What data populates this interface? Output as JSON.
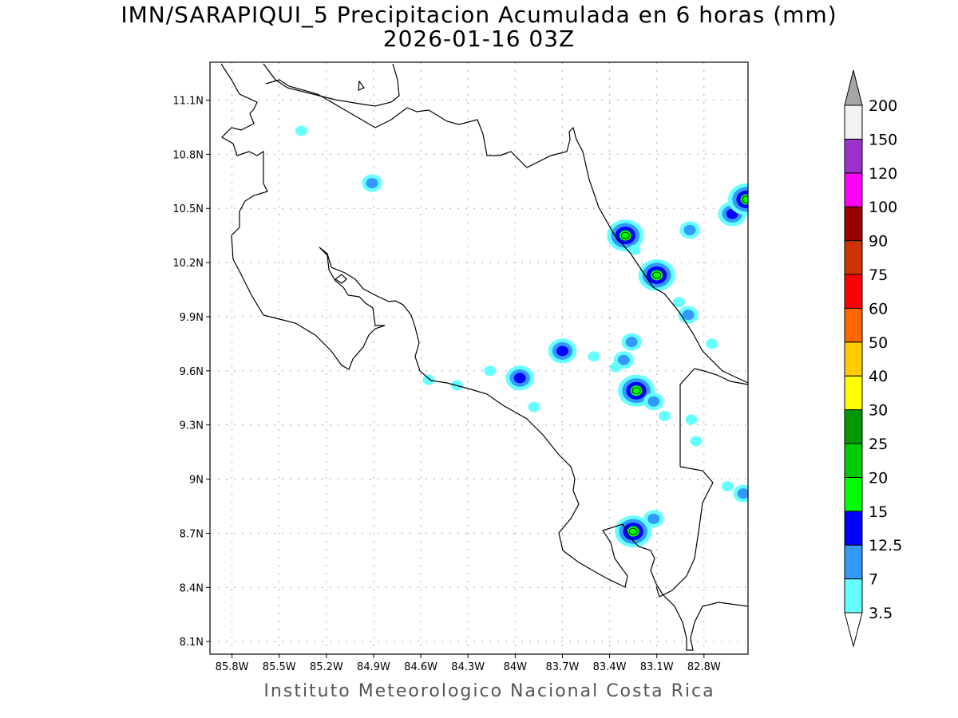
{
  "title": "IMN/SARAPIQUI_5 Precipitacion Acumulada en 6 horas (mm)",
  "subtitle": "2026-01-16 03Z",
  "footer": "Instituto Meteorologico Nacional Costa Rica",
  "map": {
    "lon_range": [
      -85.94,
      -82.52
    ],
    "lat_range": [
      8.03,
      11.31
    ],
    "lon_ticks": [
      {
        "value": -85.8,
        "label": "85.8W"
      },
      {
        "value": -85.5,
        "label": "85.5W"
      },
      {
        "value": -85.2,
        "label": "85.2W"
      },
      {
        "value": -84.9,
        "label": "84.9W"
      },
      {
        "value": -84.6,
        "label": "84.6W"
      },
      {
        "value": -84.3,
        "label": "84.3W"
      },
      {
        "value": -84.0,
        "label": "84W"
      },
      {
        "value": -83.7,
        "label": "83.7W"
      },
      {
        "value": -83.4,
        "label": "83.4W"
      },
      {
        "value": -83.1,
        "label": "83.1W"
      },
      {
        "value": -82.8,
        "label": "82.8W"
      }
    ],
    "lat_ticks": [
      {
        "value": 11.1,
        "label": "11.1N"
      },
      {
        "value": 10.8,
        "label": "10.8N"
      },
      {
        "value": 10.5,
        "label": "10.5N"
      },
      {
        "value": 10.2,
        "label": "10.2N"
      },
      {
        "value": 9.9,
        "label": "9.9N"
      },
      {
        "value": 9.6,
        "label": "9.6N"
      },
      {
        "value": 9.3,
        "label": "9.3N"
      },
      {
        "value": 9.0,
        "label": "9N"
      },
      {
        "value": 8.7,
        "label": "8.7N"
      },
      {
        "value": 8.4,
        "label": "8.4N"
      },
      {
        "value": 8.1,
        "label": "8.1N"
      }
    ],
    "grid": "dotted",
    "precip_cells": [
      {
        "lon": -85.36,
        "lat": 10.93,
        "max_mm": 3.5
      },
      {
        "lon": -84.91,
        "lat": 10.64,
        "max_mm": 7
      },
      {
        "lon": -83.3,
        "lat": 10.35,
        "max_mm": 15
      },
      {
        "lon": -83.24,
        "lat": 10.27,
        "max_mm": 3.5
      },
      {
        "lon": -83.1,
        "lat": 10.13,
        "max_mm": 15
      },
      {
        "lon": -82.89,
        "lat": 10.38,
        "max_mm": 7
      },
      {
        "lon": -82.62,
        "lat": 10.47,
        "max_mm": 12.5
      },
      {
        "lon": -82.53,
        "lat": 10.55,
        "max_mm": 15
      },
      {
        "lon": -82.9,
        "lat": 9.91,
        "max_mm": 7
      },
      {
        "lon": -82.96,
        "lat": 9.98,
        "max_mm": 3.5
      },
      {
        "lon": -82.75,
        "lat": 9.75,
        "max_mm": 3.5
      },
      {
        "lon": -83.7,
        "lat": 9.71,
        "max_mm": 12.5
      },
      {
        "lon": -83.5,
        "lat": 9.68,
        "max_mm": 3.5
      },
      {
        "lon": -83.26,
        "lat": 9.76,
        "max_mm": 7
      },
      {
        "lon": -83.31,
        "lat": 9.66,
        "max_mm": 7
      },
      {
        "lon": -83.36,
        "lat": 9.62,
        "max_mm": 3.5
      },
      {
        "lon": -83.97,
        "lat": 9.56,
        "max_mm": 12.5
      },
      {
        "lon": -84.16,
        "lat": 9.6,
        "max_mm": 3.5
      },
      {
        "lon": -84.37,
        "lat": 9.52,
        "max_mm": 3.5
      },
      {
        "lon": -84.55,
        "lat": 9.55,
        "max_mm": 3.5
      },
      {
        "lon": -83.23,
        "lat": 9.49,
        "max_mm": 15
      },
      {
        "lon": -83.12,
        "lat": 9.43,
        "max_mm": 7
      },
      {
        "lon": -83.05,
        "lat": 9.35,
        "max_mm": 3.5
      },
      {
        "lon": -83.88,
        "lat": 9.4,
        "max_mm": 3.5
      },
      {
        "lon": -82.88,
        "lat": 9.33,
        "max_mm": 3.5
      },
      {
        "lon": -82.85,
        "lat": 9.21,
        "max_mm": 3.5
      },
      {
        "lon": -82.55,
        "lat": 8.92,
        "max_mm": 7
      },
      {
        "lon": -82.65,
        "lat": 8.96,
        "max_mm": 3.5
      },
      {
        "lon": -83.12,
        "lat": 8.78,
        "max_mm": 7
      },
      {
        "lon": -83.25,
        "lat": 8.71,
        "max_mm": 15
      }
    ]
  },
  "colorbar": {
    "levels": [
      "3.5",
      "7",
      "12.5",
      "15",
      "20",
      "25",
      "30",
      "40",
      "50",
      "60",
      "75",
      "90",
      "100",
      "120",
      "150",
      "200"
    ],
    "colors": [
      "#66ffff",
      "#3399ff",
      "#0000ff",
      "#00ff00",
      "#00cc00",
      "#009900",
      "#ffff00",
      "#ffcc00",
      "#ff6600",
      "#ff0000",
      "#cc3300",
      "#990000",
      "#ff00ff",
      "#9933cc",
      "#f2f2f2"
    ],
    "over_color": "#a6a6a6",
    "under_color": "#ffffff"
  }
}
